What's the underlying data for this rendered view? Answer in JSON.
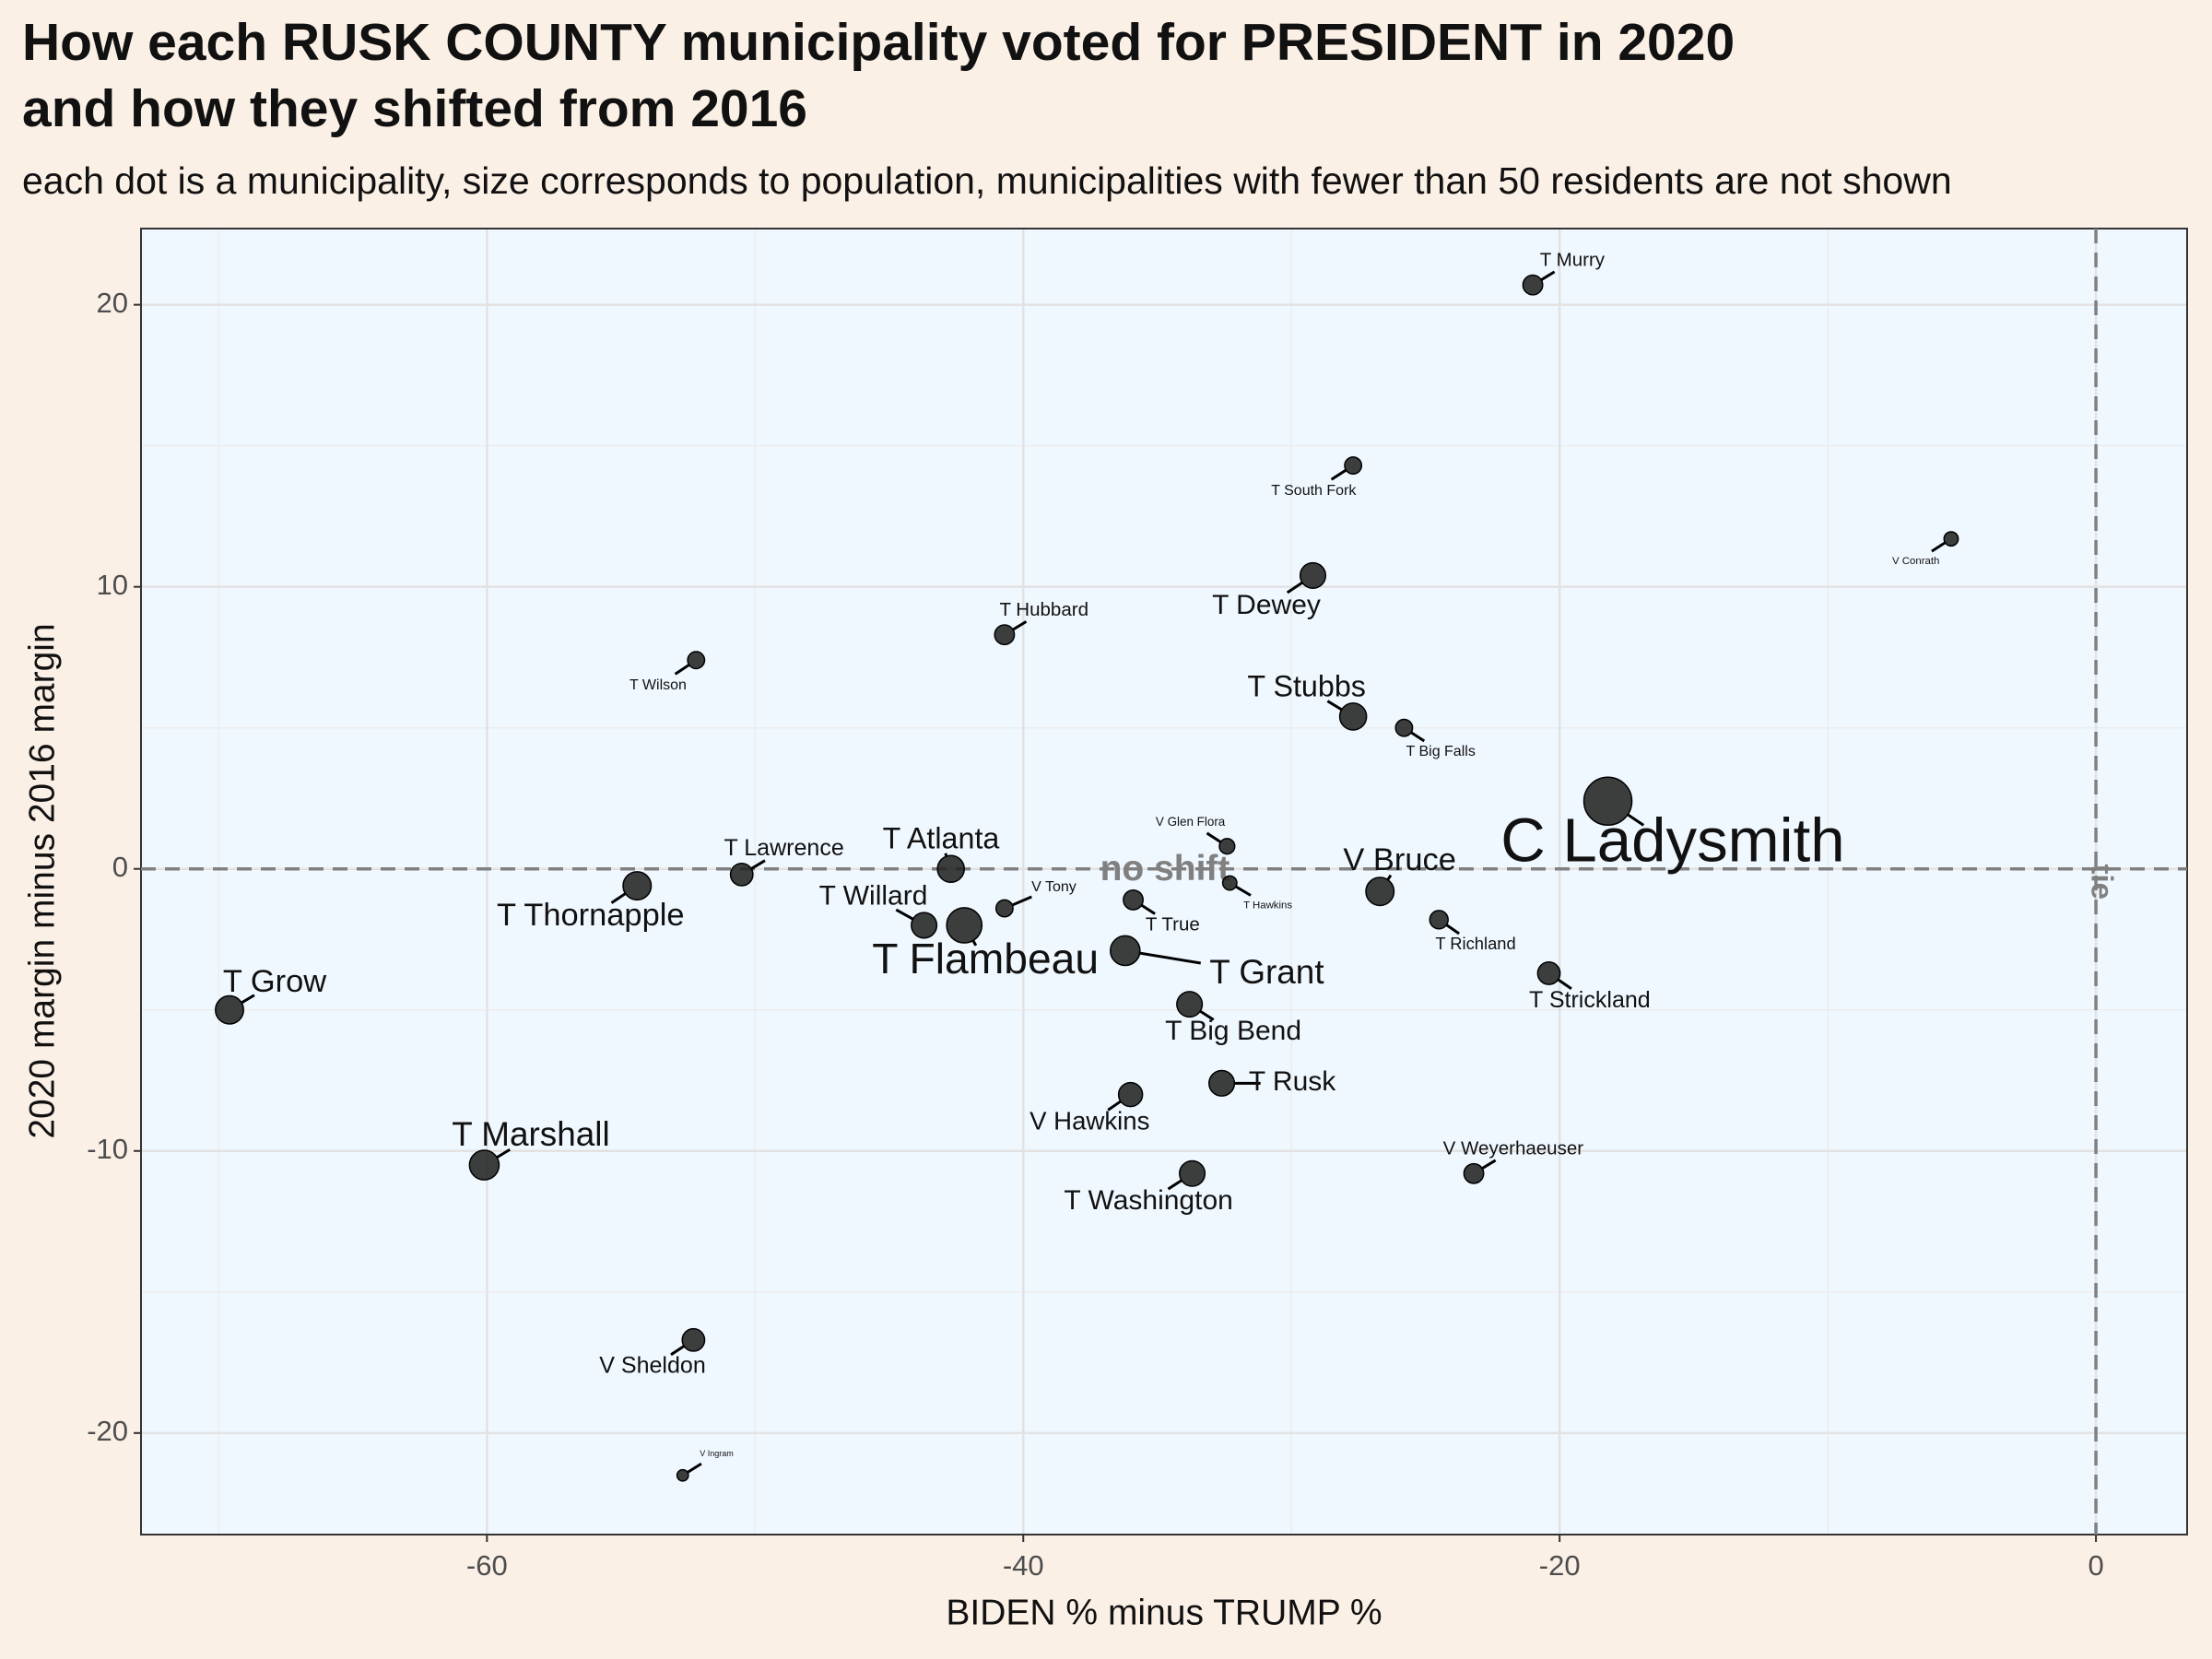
{
  "chart_data": {
    "type": "scatter",
    "title": [
      "How each RUSK COUNTY municipality voted for PRESIDENT in 2020",
      "and how they shifted from 2016"
    ],
    "subtitle": "each dot is a municipality, size corresponds to population, municipalities with fewer than 50 residents are not shown",
    "x_label": "BIDEN % minus TRUMP %",
    "y_label": "2020 margin minus 2016 margin",
    "labels": [
      "T Murry",
      "T South Fork",
      "V Conrath",
      "T Dewey",
      "T Hubbard",
      "T Wilson",
      "T Stubbs",
      "T Big Falls",
      "C Ladysmith",
      "V Glen Flora",
      "T Hawkins",
      "V Bruce",
      "T Lawrence",
      "T Thornapple",
      "T Atlanta",
      "V Tony",
      "T True",
      "T Willard",
      "T Flambeau",
      "T Richland",
      "T Grant",
      "T Strickland",
      "T Grow",
      "T Big Bend",
      "T Rusk",
      "V Hawkins",
      "T Marshall",
      "V Weyerhaeuser",
      "T Washington",
      "V Sheldon",
      "V Ingram"
    ],
    "x": [
      -21.0,
      -27.7,
      -5.4,
      -29.2,
      -40.7,
      -52.2,
      -27.7,
      -25.8,
      -18.2,
      -32.4,
      -32.3,
      -26.7,
      -50.5,
      -54.4,
      -42.7,
      -40.7,
      -35.9,
      -43.7,
      -42.2,
      -24.5,
      -36.2,
      -20.4,
      -69.6,
      -33.8,
      -32.6,
      -36.0,
      -60.1,
      -23.2,
      -33.7,
      -52.3,
      -52.7
    ],
    "y": [
      20.7,
      14.3,
      11.7,
      10.4,
      8.3,
      7.4,
      5.4,
      5.0,
      2.4,
      0.8,
      -0.5,
      -0.8,
      -0.2,
      -0.6,
      0.0,
      -1.4,
      -1.1,
      -2.0,
      -2.0,
      -1.8,
      -2.9,
      -3.7,
      -5.0,
      -4.8,
      -7.6,
      -8.0,
      -10.5,
      -10.8,
      -10.8,
      -16.7,
      -21.5
    ],
    "sizes": [
      540,
      400,
      280,
      900,
      540,
      400,
      1000,
      400,
      3200,
      330,
      280,
      1100,
      700,
      1100,
      1000,
      400,
      540,
      900,
      1730,
      470,
      1220,
      700,
      1100,
      900,
      900,
      800,
      1220,
      540,
      900,
      700,
      180
    ],
    "color": "#222222",
    "xlim": [
      -72.9,
      3.4
    ],
    "ylim": [
      -23.6,
      22.7
    ],
    "xticks": [
      -60,
      -40,
      -20,
      0
    ],
    "yticks": [
      -20,
      -10,
      0,
      10,
      20
    ],
    "x_minor_grid": [
      -70,
      -50,
      -30,
      -10
    ],
    "y_minor_grid": [
      -15,
      -5,
      5,
      15
    ],
    "grid": true,
    "hline": {
      "value": 0,
      "label": "no shift"
    },
    "vline": {
      "value": 0,
      "label": "tie"
    }
  }
}
